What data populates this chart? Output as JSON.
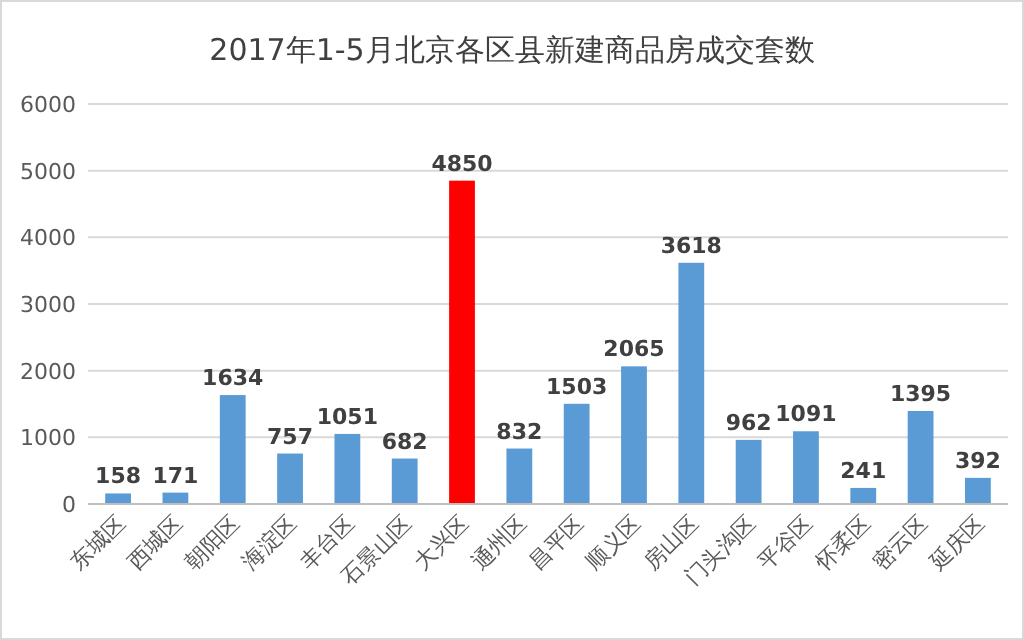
{
  "chart_data": {
    "type": "bar",
    "title": "2017年1-5月北京各区县新建商品房成交套数",
    "categories": [
      "东城区",
      "西城区",
      "朝阳区",
      "海淀区",
      "丰台区",
      "石景山区",
      "大兴区",
      "通州区",
      "昌平区",
      "顺义区",
      "房山区",
      "门头沟区",
      "平谷区",
      "怀柔区",
      "密云区",
      "延庆区"
    ],
    "values": [
      158,
      171,
      1634,
      757,
      1051,
      682,
      4850,
      832,
      1503,
      2065,
      3618,
      962,
      1091,
      241,
      1395,
      392
    ],
    "colors": [
      "#5b9bd5",
      "#5b9bd5",
      "#5b9bd5",
      "#5b9bd5",
      "#5b9bd5",
      "#5b9bd5",
      "#ff0000",
      "#5b9bd5",
      "#5b9bd5",
      "#5b9bd5",
      "#5b9bd5",
      "#5b9bd5",
      "#5b9bd5",
      "#5b9bd5",
      "#5b9bd5",
      "#5b9bd5"
    ],
    "ylim": [
      0,
      6000
    ],
    "yticks": [
      0,
      1000,
      2000,
      3000,
      4000,
      5000,
      6000
    ],
    "grid": "y",
    "data_labels": true
  }
}
